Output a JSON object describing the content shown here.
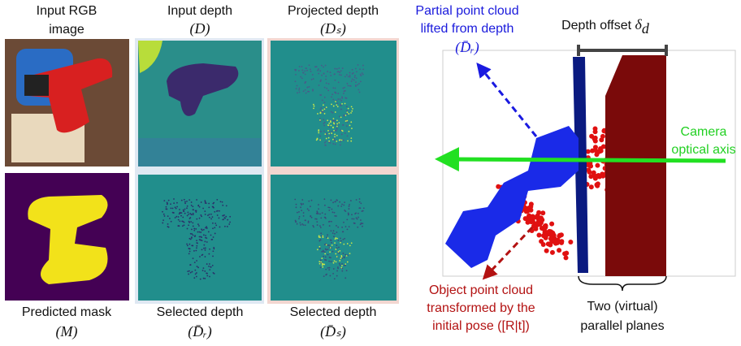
{
  "columns": [
    {
      "top_caption": [
        "Input RGB",
        "image"
      ],
      "bottom_caption": [
        "Predicted mask",
        "(M)"
      ]
    },
    {
      "top_caption": [
        "Input depth",
        "(D)"
      ],
      "bottom_caption": [
        "Selected depth",
        "(D̄ᵣ)"
      ]
    },
    {
      "top_caption": [
        "Projected depth",
        "(Dₛ)"
      ],
      "bottom_caption": [
        "Selected depth",
        "(D̄ₛ)"
      ]
    }
  ],
  "diagram": {
    "partial_cloud_label": [
      "Partial point cloud",
      "lifted from depth",
      "(D̄ᵣ)"
    ],
    "depth_offset": {
      "text": "Depth offset",
      "symbol": "δ",
      "subscript": "d"
    },
    "camera_label": [
      "Camera",
      "optical axis"
    ],
    "object_cloud_label": [
      "Object point cloud",
      "transformed by the",
      "initial pose ([R|t])"
    ],
    "planes_label": [
      "Two (virtual)",
      "parallel planes"
    ]
  }
}
